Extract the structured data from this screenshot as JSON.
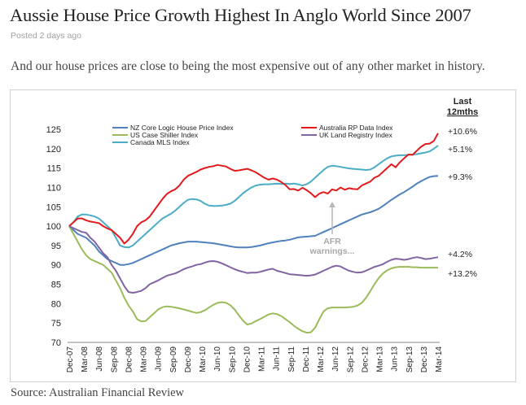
{
  "article": {
    "title": "Aussie House Price Growth Highest In Anglo World Since 2007",
    "posted": "Posted 2 days ago",
    "subtitle": "And our house prices are close to being the most expensive out of any other market in history.",
    "source": "Source: Australian Financial Review"
  },
  "colors": {
    "nz": "#4f81bd",
    "us": "#9bbb59",
    "canada": "#4bacc6",
    "australia": "#e31a1c",
    "uk": "#8064a2"
  },
  "chart_data": {
    "type": "line",
    "title": "",
    "xlabel": "",
    "ylabel": "",
    "ylim": [
      70,
      125
    ],
    "yticks": [
      70,
      75,
      80,
      85,
      90,
      95,
      100,
      105,
      110,
      115,
      120,
      125
    ],
    "grid": false,
    "legend": "top-left",
    "x_tick_labels": [
      "Dec-07",
      "Mar-08",
      "Jun-08",
      "Sep-08",
      "Dec-08",
      "Mar-09",
      "Jun-09",
      "Sep-09",
      "Dec-09",
      "Mar-10",
      "Jun-10",
      "Sep-10",
      "Dec-10",
      "Mar-11",
      "Jun-11",
      "Sep-11",
      "Dec-11",
      "Mar-12",
      "Jun-12",
      "Sep-12",
      "Dec-12",
      "Mar-13",
      "Jun-13",
      "Sep-13",
      "Dec-13",
      "Mar-14"
    ],
    "series": [
      {
        "name": "NZ Core Logic House Price Index",
        "color_key": "nz",
        "values": [
          100,
          99,
          98,
          97.5,
          97,
          96,
          95,
          93.5,
          92.5,
          91.5,
          91,
          90.5,
          90,
          90,
          90.2,
          90.5,
          91,
          91.5,
          92,
          92.5,
          93,
          93.5,
          94,
          94.5,
          95,
          95.3,
          95.6,
          95.8,
          96,
          96,
          96,
          95.9,
          95.8,
          95.7,
          95.6,
          95.4,
          95.2,
          95,
          94.8,
          94.6,
          94.5,
          94.5,
          94.5,
          94.6,
          94.8,
          95,
          95.3,
          95.6,
          95.8,
          96,
          96.2,
          96.3,
          96.5,
          96.8,
          97.1,
          97.2,
          97.3,
          97.4,
          97.5,
          98,
          98.5,
          99,
          99.5,
          100,
          100.5,
          101,
          101.5,
          102,
          102.5,
          103,
          103.3,
          103.6,
          104,
          104.5,
          105.2,
          106,
          106.8,
          107.5,
          108.2,
          108.8,
          109.5,
          110.2,
          111,
          111.6,
          112.2,
          112.7,
          112.9,
          113
        ]
      },
      {
        "name": "US Case Shiller Index",
        "color_key": "us",
        "values": [
          100,
          98,
          96,
          94,
          92.5,
          91.5,
          91,
          90.5,
          90,
          89,
          88,
          86,
          84,
          81.5,
          79.5,
          78,
          76,
          75.4,
          75.5,
          76.5,
          77.5,
          78.5,
          79.1,
          79.3,
          79.2,
          79,
          78.8,
          78.5,
          78.2,
          77.9,
          77.6,
          77.8,
          78.3,
          79,
          79.7,
          80.2,
          80.4,
          80.2,
          79.6,
          78.5,
          77,
          75.6,
          74.6,
          74.9,
          75.5,
          76,
          76.6,
          77.2,
          77.5,
          77.3,
          76.8,
          76,
          75.2,
          74.3,
          73.5,
          72.9,
          72.5,
          72.6,
          73.8,
          76,
          78,
          78.8,
          79,
          79,
          79,
          79,
          79.1,
          79.2,
          79.5,
          80.2,
          81.5,
          83.2,
          85,
          86.6,
          87.8,
          88.6,
          89.1,
          89.4,
          89.5,
          89.5,
          89.5,
          89.4,
          89.4,
          89.3,
          89.3,
          89.3,
          89.3,
          89.3
        ]
      },
      {
        "name": "Canada MLS Index",
        "color_key": "canada",
        "values": [
          100,
          101,
          102.5,
          103,
          103,
          102.8,
          102.5,
          102,
          101,
          100,
          99,
          97,
          95,
          94.6,
          94.5,
          95,
          96,
          97,
          98,
          99,
          100,
          101,
          102,
          102.6,
          103.2,
          104,
          105,
          106,
          106.8,
          107,
          106.9,
          106.5,
          105.8,
          105.3,
          105.2,
          105.2,
          105.3,
          105.5,
          105.8,
          106.5,
          107.5,
          108.5,
          109.3,
          110,
          110.5,
          110.7,
          110.8,
          110.8,
          110.9,
          111,
          110.9,
          111,
          110.9,
          111,
          110.8,
          110.5,
          110.8,
          111.5,
          112.5,
          113.5,
          114.5,
          115.3,
          115.6,
          115.5,
          115.3,
          115.1,
          114.9,
          114.8,
          114.7,
          114.6,
          114.5,
          114.6,
          115.2,
          116,
          116.8,
          117.5,
          118,
          118.2,
          118.3,
          118.3,
          118.4,
          118.5,
          118.6,
          118.8,
          119,
          119.3,
          120,
          120.8
        ]
      },
      {
        "name": "Australia RP Data Index",
        "color_key": "australia",
        "values": [
          100,
          101,
          102,
          102,
          101.5,
          101.2,
          101,
          100.8,
          100,
          99.4,
          99,
          98,
          97,
          95.5,
          96.5,
          98,
          100,
          101,
          101.5,
          102.5,
          104,
          105.5,
          107,
          108.3,
          109,
          109.5,
          110.5,
          112,
          113,
          113.5,
          114,
          114.6,
          115,
          115.3,
          115.5,
          115.8,
          115.6,
          115.4,
          114.8,
          114.3,
          114.4,
          114.6,
          114.8,
          114.4,
          113.9,
          113.2,
          112.5,
          112,
          112.3,
          112,
          111.4,
          110.6,
          109.5,
          109.6,
          109.2,
          109.9,
          109.3,
          108.5,
          107.5,
          108.4,
          108.8,
          108.4,
          109.5,
          109.2,
          110,
          109.4,
          109.8,
          109.6,
          109.5,
          110.5,
          111,
          111.5,
          112.5,
          113,
          114,
          115,
          116,
          115.2,
          116.5,
          117.5,
          118.5,
          118.4,
          119.5,
          120.5,
          121.2,
          121.3,
          122,
          124
        ]
      },
      {
        "name": "UK Land Registry Index",
        "color_key": "uk",
        "values": [
          100,
          99.5,
          99,
          98.5,
          98.3,
          97,
          96,
          94.5,
          93,
          92,
          90,
          88.5,
          86.5,
          84.5,
          83,
          82.8,
          83,
          83.3,
          84,
          85,
          85.5,
          86,
          86.6,
          87.2,
          87.5,
          87.8,
          88.3,
          88.9,
          89.3,
          89.6,
          90,
          90.2,
          90.6,
          90.9,
          91,
          90.8,
          90.4,
          89.9,
          89.4,
          88.9,
          88.5,
          88.2,
          87.9,
          88,
          88,
          88.2,
          88.5,
          88.8,
          89,
          88.5,
          88.2,
          87.9,
          87.6,
          87.5,
          87.4,
          87.3,
          87.2,
          87.3,
          87.5,
          88,
          88.5,
          89,
          89.5,
          89.8,
          89.6,
          89,
          88.5,
          88.2,
          88,
          88.1,
          88.5,
          89,
          89.5,
          89.8,
          90.2,
          90.8,
          91.3,
          91.6,
          91.5,
          91.3,
          91.5,
          91.8,
          92,
          91.8,
          91.5,
          91.6,
          91.8,
          92
        ]
      }
    ],
    "last12_header": [
      "Last",
      "12mths"
    ],
    "annotations": {
      "last12": [
        {
          "text": "+10.6%",
          "series": "Australia RP Data Index"
        },
        {
          "text": "+5.1%",
          "series": "Canada MLS Index"
        },
        {
          "text": "+9.3%",
          "series": "NZ Core Logic House Price Index"
        },
        {
          "text": "+4.2%",
          "series": "UK Land Registry Index"
        },
        {
          "text": "+13.2%",
          "series": "US Case Shiller Index"
        }
      ],
      "afr": [
        "AFR",
        "warnings..."
      ]
    }
  }
}
